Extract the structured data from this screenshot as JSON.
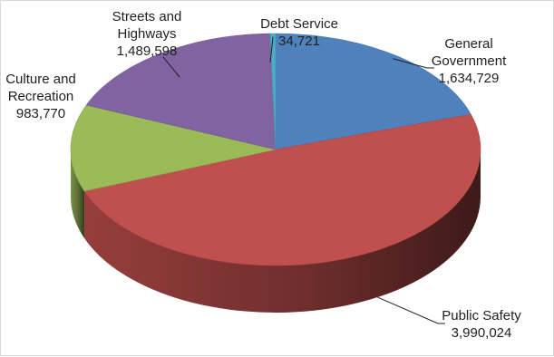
{
  "chart_data": {
    "type": "pie",
    "title": "",
    "categories": [
      "General Government",
      "Public Safety",
      "Culture and Recreation",
      "Streets and Highways",
      "Debt Service"
    ],
    "values": [
      1634729,
      3990024,
      983770,
      1489598,
      34721
    ],
    "value_labels": [
      "1,634,729",
      "3,990,024",
      "983,770",
      "1,489,598",
      "34,721"
    ],
    "label_lines": [
      [
        "General",
        "Government"
      ],
      [
        "Public Safety"
      ],
      [
        "Culture and",
        "Recreation"
      ],
      [
        "Streets and",
        "Highways"
      ],
      [
        "Debt Service"
      ]
    ],
    "colors": [
      "#4f81bd",
      "#c0504d",
      "#9bbb59",
      "#8064a2",
      "#4bacc6"
    ],
    "style": "3d-pie",
    "legend": "none"
  }
}
